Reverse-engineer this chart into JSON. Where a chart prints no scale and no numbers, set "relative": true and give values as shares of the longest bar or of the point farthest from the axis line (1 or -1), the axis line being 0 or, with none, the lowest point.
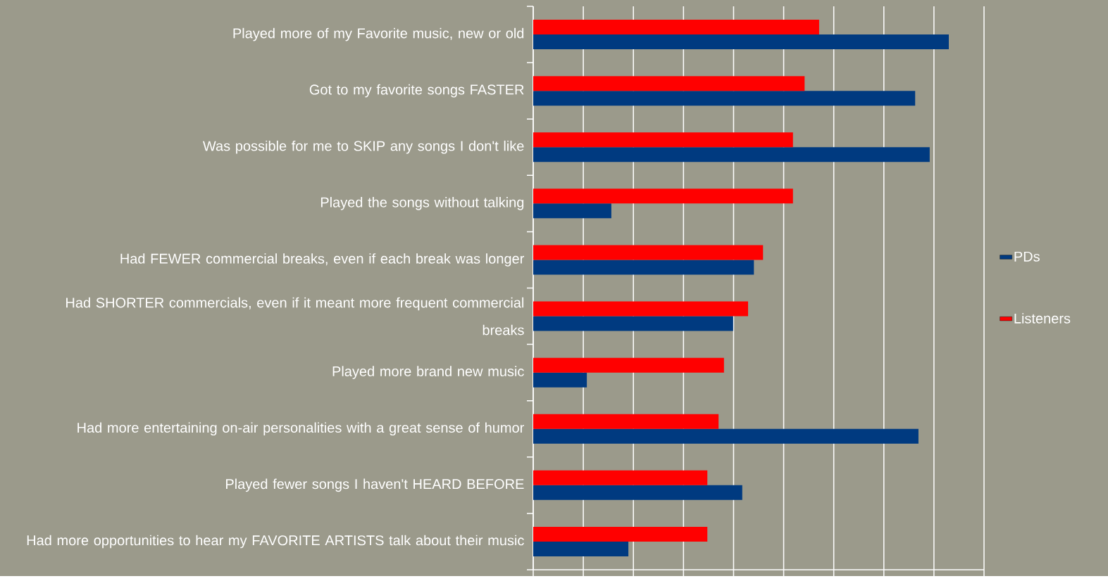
{
  "chart_data": {
    "type": "bar",
    "orientation": "horizontal",
    "relative": true,
    "grid": "x",
    "legend": "right",
    "categories": [
      "Played more of my Favorite music, new or old",
      "Got to my favorite songs FASTER",
      "Was possible for me to SKIP any songs I don't like",
      "Played the songs without talking",
      "Had FEWER commercial breaks, even if each break was longer",
      "Had SHORTER commercials, even if it meant more frequent commercial breaks",
      "Played more brand new music",
      "Had more entertaining on-air personalities with a great sense of humor",
      "Played fewer songs I haven't HEARD BEFORE",
      "Had more opportunities to hear my FAVORITE ARTISTS talk about their music"
    ],
    "series": [
      {
        "name": "PDs",
        "color": "#003a80",
        "values": [
          1.0,
          0.919,
          0.954,
          0.188,
          0.531,
          0.481,
          0.129,
          0.927,
          0.503,
          0.229
        ]
      },
      {
        "name": "Listeners",
        "color": "#ff0000",
        "values": [
          0.688,
          0.653,
          0.625,
          0.625,
          0.553,
          0.517,
          0.459,
          0.446,
          0.419,
          0.419
        ]
      }
    ]
  }
}
